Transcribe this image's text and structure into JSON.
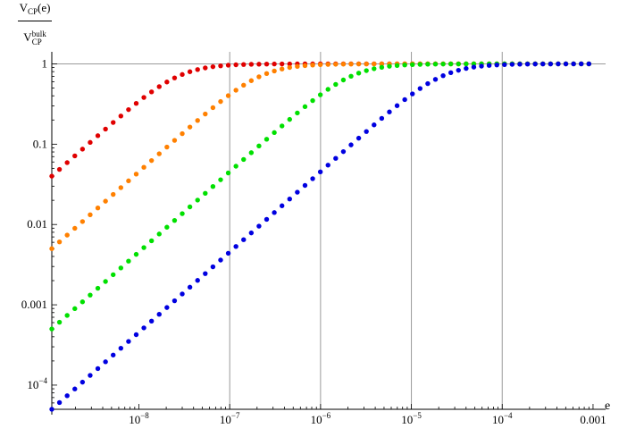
{
  "chart_data": {
    "type": "scatter",
    "title": "",
    "xscale": "log",
    "yscale": "log",
    "xlim": [
      1.1e-09,
      0.0012
    ],
    "ylim": [
      5e-05,
      1.15
    ],
    "grid": {
      "x": [
        1e-07,
        1e-06,
        1e-05,
        0.0001
      ],
      "y": [
        1
      ]
    },
    "x_ticks": [
      {
        "value": 1e-08,
        "label": "10",
        "exp": "−8"
      },
      {
        "value": 1e-07,
        "label": "10",
        "exp": "−7"
      },
      {
        "value": 1e-06,
        "label": "10",
        "exp": "−6"
      },
      {
        "value": 1e-05,
        "label": "10",
        "exp": "−5"
      },
      {
        "value": 0.0001,
        "label": "10",
        "exp": "−4"
      },
      {
        "value": 0.001,
        "label": "0.001",
        "exp": ""
      }
    ],
    "y_ticks": [
      {
        "value": 0.0001,
        "label": "10",
        "exp": "−4"
      },
      {
        "value": 0.001,
        "label": "0.001",
        "exp": ""
      },
      {
        "value": 0.01,
        "label": "0.01",
        "exp": ""
      },
      {
        "value": 0.1,
        "label": "0.1",
        "exp": ""
      },
      {
        "value": 1,
        "label": "1",
        "exp": ""
      }
    ],
    "xlabel": "e",
    "ylabel": {
      "numerator": "V",
      "numerator_sub": "CP",
      "numerator_tail": "(e)",
      "denominator": "V",
      "denominator_sub": "CP",
      "denominator_sup": "bulk"
    },
    "series": [
      {
        "color": "#e00000",
        "x_start": 1.1e-09,
        "x_end": 0.0009,
        "n_points": 71,
        "y_start": 0.04,
        "e_half": 2.1e-09
      },
      {
        "color": "#ff8000",
        "x_start": 1.1e-09,
        "x_end": 0.0009,
        "n_points": 71,
        "y_start": 0.005,
        "e_half": 1.8e-08
      },
      {
        "color": "#00e000",
        "x_start": 1.1e-09,
        "x_end": 0.0009,
        "n_points": 71,
        "y_start": 0.0005,
        "e_half": 1.7e-07
      },
      {
        "color": "#0000e0",
        "x_start": 1.1e-09,
        "x_end": 0.0009,
        "n_points": 71,
        "y_start": 5e-05,
        "e_half": 1.7e-06
      }
    ]
  }
}
